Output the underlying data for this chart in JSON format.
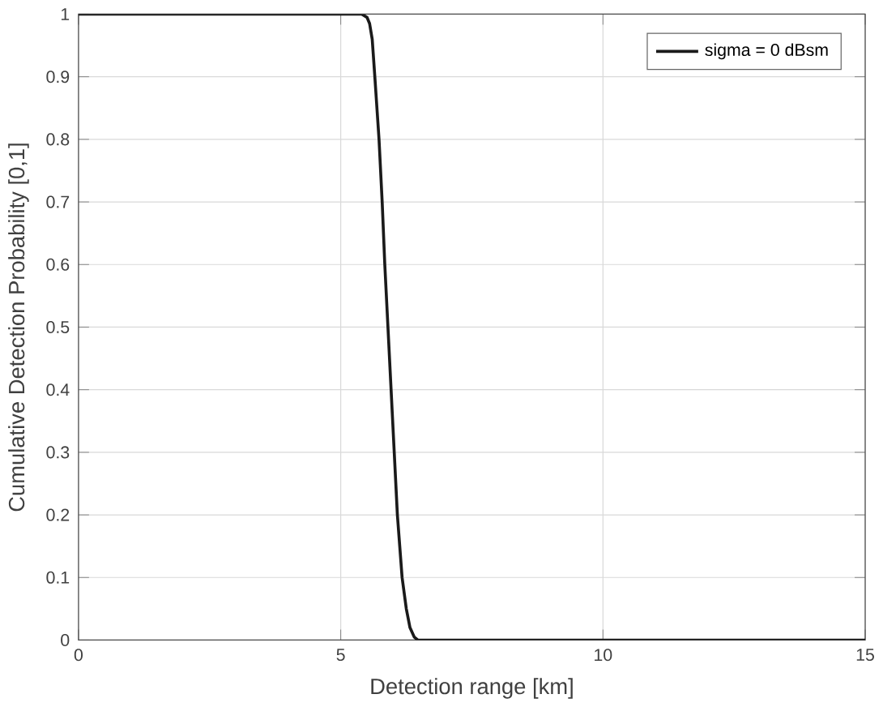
{
  "chart_data": {
    "type": "line",
    "xlabel": "Detection range [km]",
    "ylabel": "Cumulative Detection Probability [0,1]",
    "xlim": [
      0,
      15
    ],
    "xticks": [
      0,
      5,
      10,
      15
    ],
    "ylim": [
      0,
      1
    ],
    "yticks": [
      0,
      0.1,
      0.2,
      0.3,
      0.4,
      0.5,
      0.6,
      0.7,
      0.8,
      0.9,
      1
    ],
    "grid": true,
    "legend": "top right",
    "series": [
      {
        "name": "sigma = 0 dBsm",
        "color": "#1a1a1a",
        "x": [
          0,
          5.4,
          5.5,
          5.55,
          5.6,
          5.65,
          5.73,
          5.79,
          5.84,
          5.9,
          5.96,
          6.02,
          6.08,
          6.17,
          6.25,
          6.32,
          6.4,
          6.47,
          15
        ],
        "values": [
          1,
          1,
          0.995,
          0.985,
          0.96,
          0.9,
          0.8,
          0.7,
          0.6,
          0.5,
          0.4,
          0.3,
          0.2,
          0.1,
          0.05,
          0.02,
          0.005,
          0,
          0
        ]
      }
    ]
  }
}
